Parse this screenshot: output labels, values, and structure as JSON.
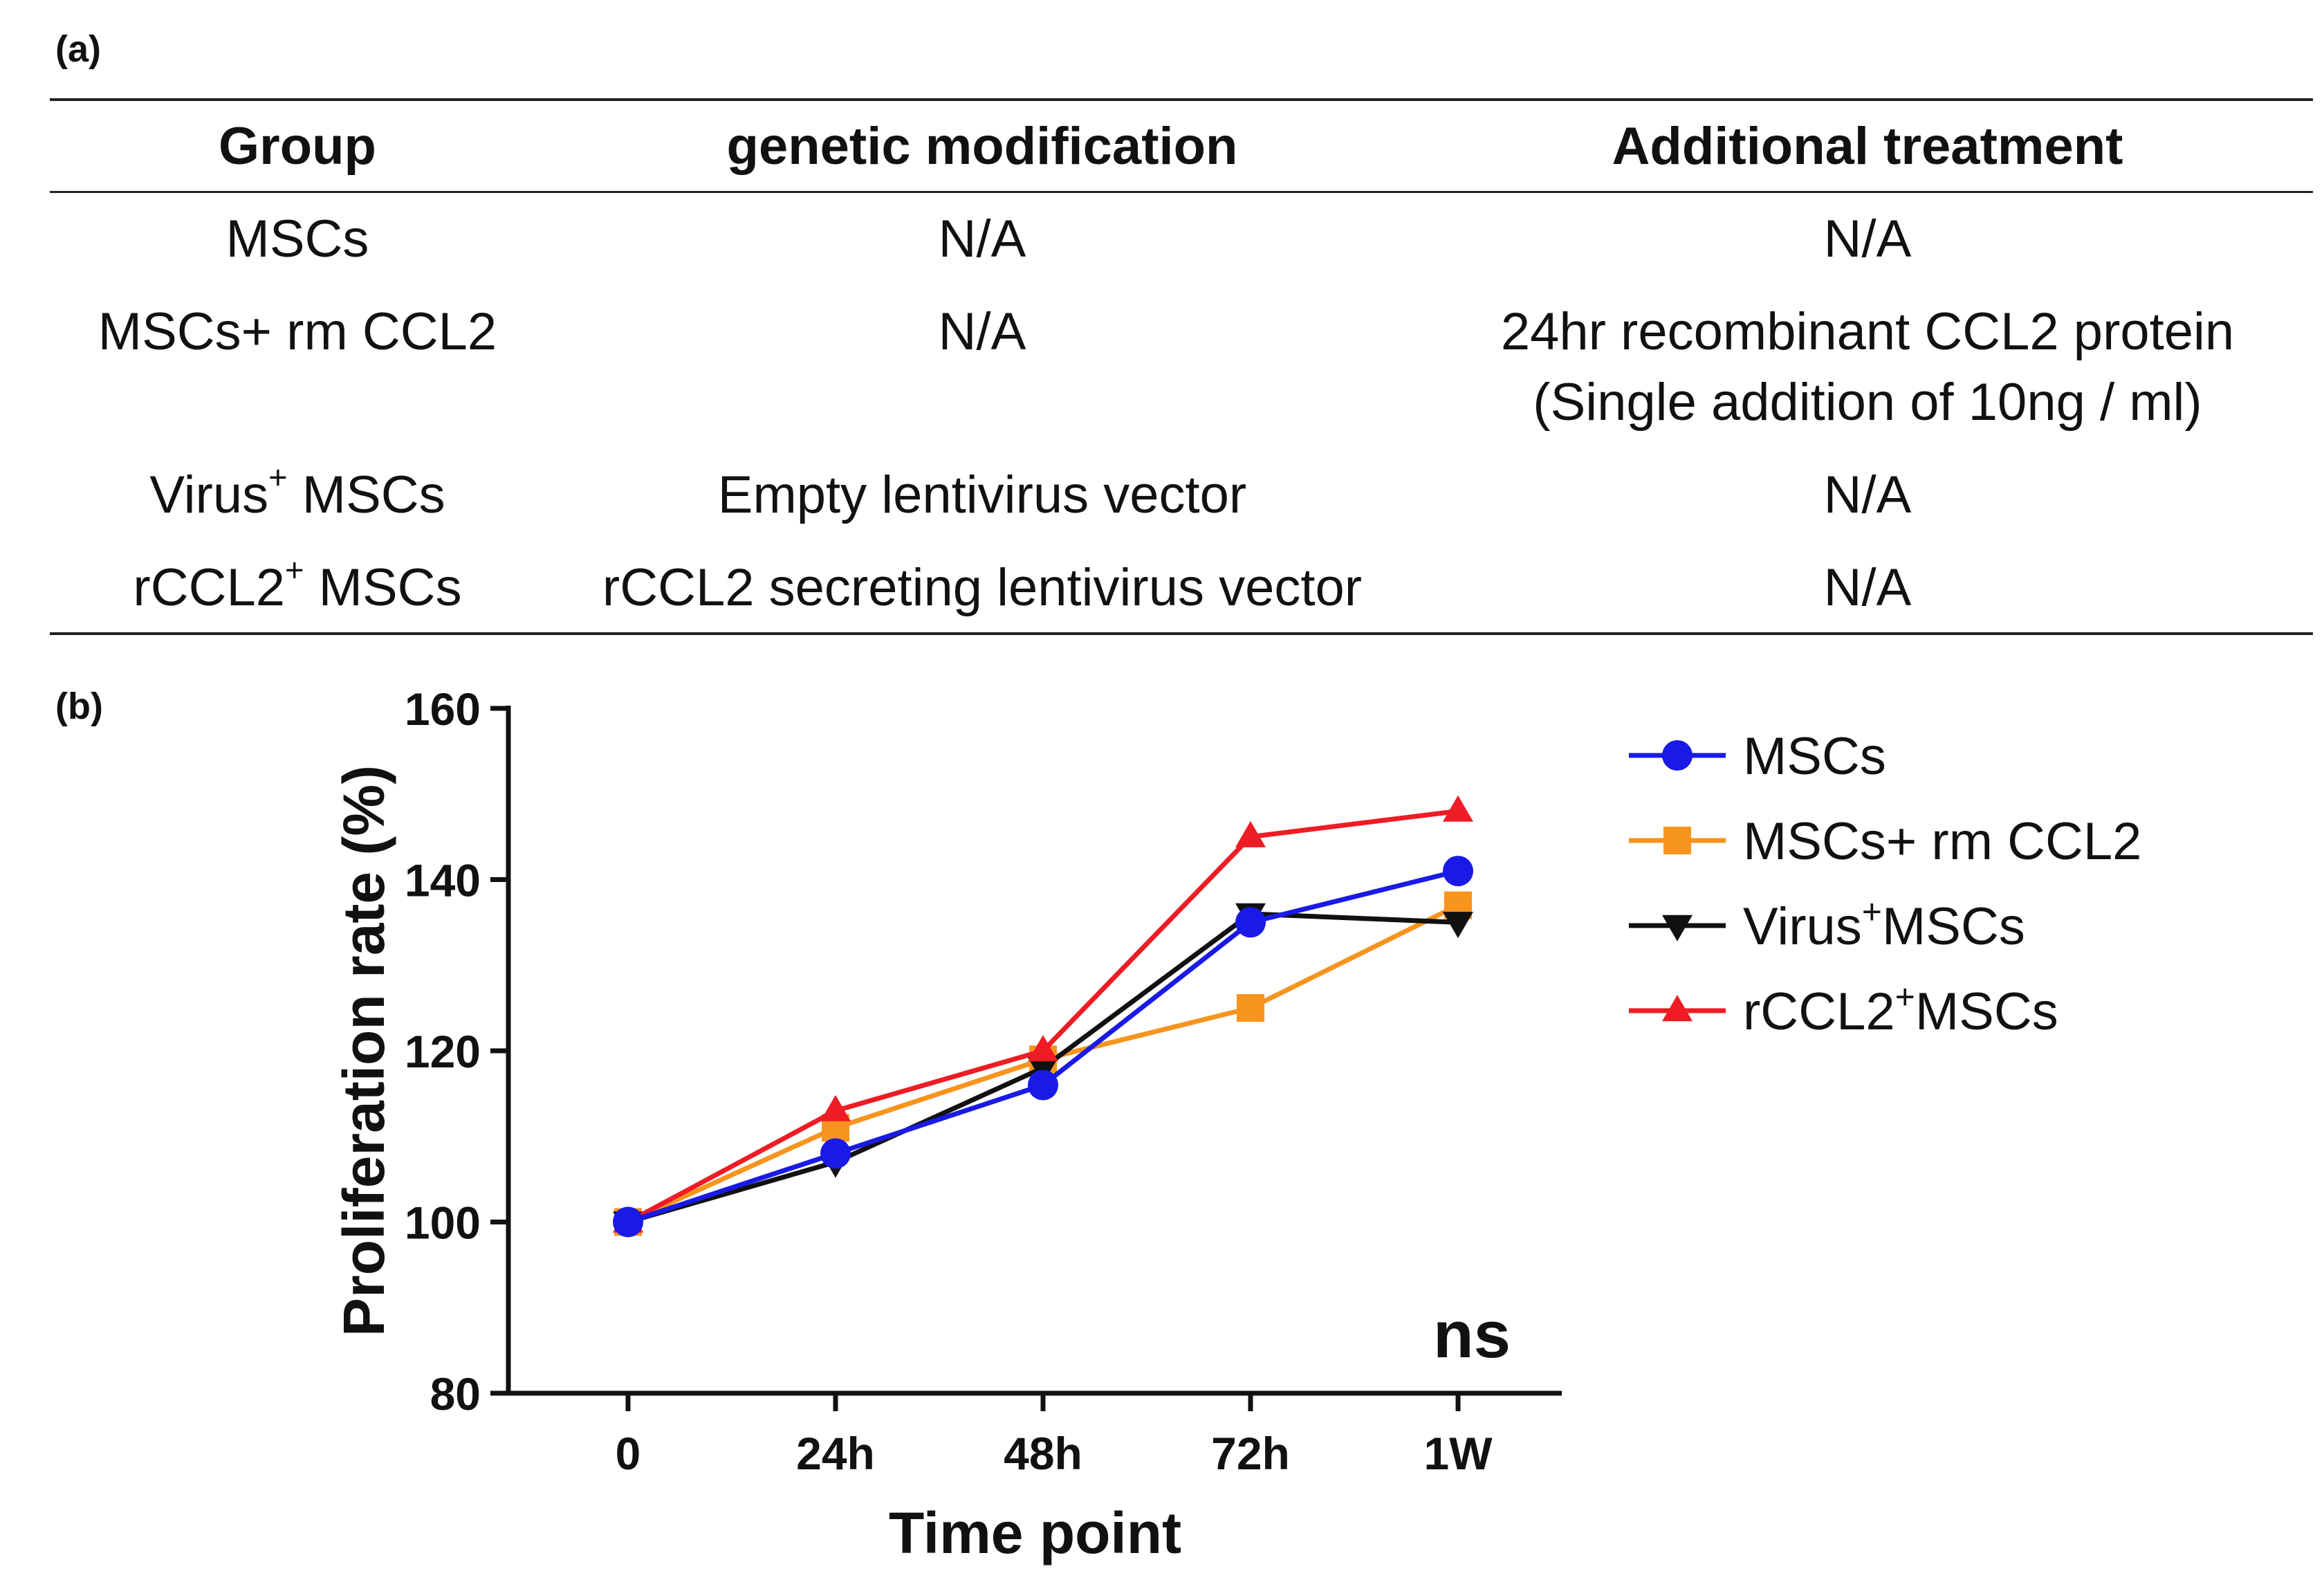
{
  "panel_a": {
    "label": "(a)",
    "headers": [
      "Group",
      "genetic modification",
      "Additional treatment"
    ],
    "rows": [
      {
        "group": "MSCs",
        "group_sup": "",
        "group_suffix": "",
        "modification": "N/A",
        "treatment": [
          "N/A"
        ]
      },
      {
        "group": "MSCs+ rm CCL2",
        "group_sup": "",
        "group_suffix": "",
        "modification": "N/A",
        "treatment": [
          "24hr recombinant CCL2 protein",
          "(Single addition of 10ng / ml)"
        ]
      },
      {
        "group": "Virus",
        "group_sup": "+",
        "group_suffix": " MSCs",
        "modification": "Empty lentivirus vector",
        "treatment": [
          "N/A"
        ]
      },
      {
        "group": "rCCL2",
        "group_sup": "+",
        "group_suffix": " MSCs",
        "modification": "rCCL2 secreting lentivirus vector",
        "treatment": [
          "N/A"
        ]
      }
    ]
  },
  "panel_b": {
    "label": "(b)",
    "annotation": "ns"
  },
  "chart_data": {
    "type": "line",
    "title": "",
    "xlabel": "Time point",
    "ylabel": "Proliferation rate (%)",
    "categories": [
      "0",
      "24h",
      "48h",
      "72h",
      "1W"
    ],
    "ylim": [
      80,
      160
    ],
    "yticks": [
      80,
      100,
      120,
      140,
      160
    ],
    "legend_position": "right",
    "series": [
      {
        "name": "MSCs+ rm CCL2",
        "legend": [
          "MSCs+ rm CCL2",
          "",
          ""
        ],
        "color": "#f7941d",
        "marker": "square",
        "values": [
          100,
          111,
          119,
          125,
          137
        ]
      },
      {
        "name": "Virus+MSCs",
        "legend": [
          "Virus",
          "+",
          "MSCs"
        ],
        "color": "#111111",
        "marker": "triangle-down",
        "values": [
          100,
          107,
          118,
          136,
          135
        ]
      },
      {
        "name": "rCCL2+MSCs",
        "legend": [
          "rCCL2",
          "+",
          "MSCs"
        ],
        "color": "#ee1c24",
        "marker": "triangle-up",
        "values": [
          100,
          113,
          120,
          145,
          148
        ]
      },
      {
        "name": "MSCs",
        "legend": [
          "MSCs",
          "",
          ""
        ],
        "color": "#1a1ae6",
        "marker": "circle",
        "values": [
          100,
          108,
          116,
          135,
          141
        ]
      }
    ],
    "legend_order": [
      "MSCs",
      "MSCs+ rm CCL2",
      "Virus+MSCs",
      "rCCL2+MSCs"
    ]
  }
}
